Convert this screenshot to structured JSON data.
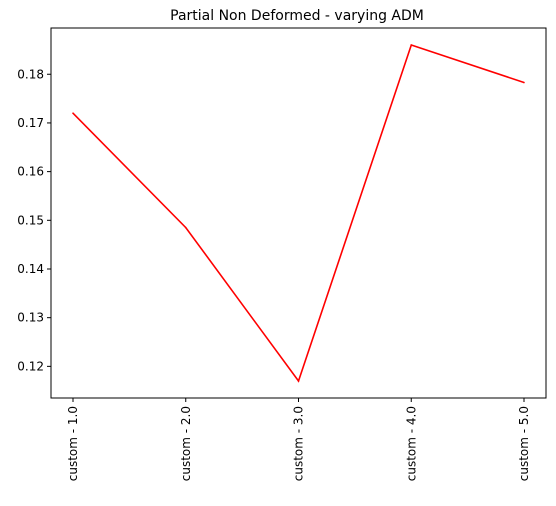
{
  "chart_data": {
    "type": "line",
    "title": "Partial Non Deformed - varying ADM",
    "xlabel": "",
    "ylabel": "",
    "categories": [
      "custom - 1.0",
      "custom - 2.0",
      "custom - 3.0",
      "custom - 4.0",
      "custom - 5.0"
    ],
    "series": [
      {
        "values": [
          0.172,
          0.1485,
          0.117,
          0.186,
          0.1783
        ],
        "color": "#ff0000"
      }
    ],
    "ylim": [
      0.1135,
      0.1895
    ],
    "yticks": [
      0.12,
      0.13,
      0.14,
      0.15,
      0.16,
      0.17,
      0.18
    ],
    "ytick_labels": [
      "0.12",
      "0.13",
      "0.14",
      "0.15",
      "0.16",
      "0.17",
      "0.18"
    ],
    "grid": false,
    "legend": "none"
  }
}
